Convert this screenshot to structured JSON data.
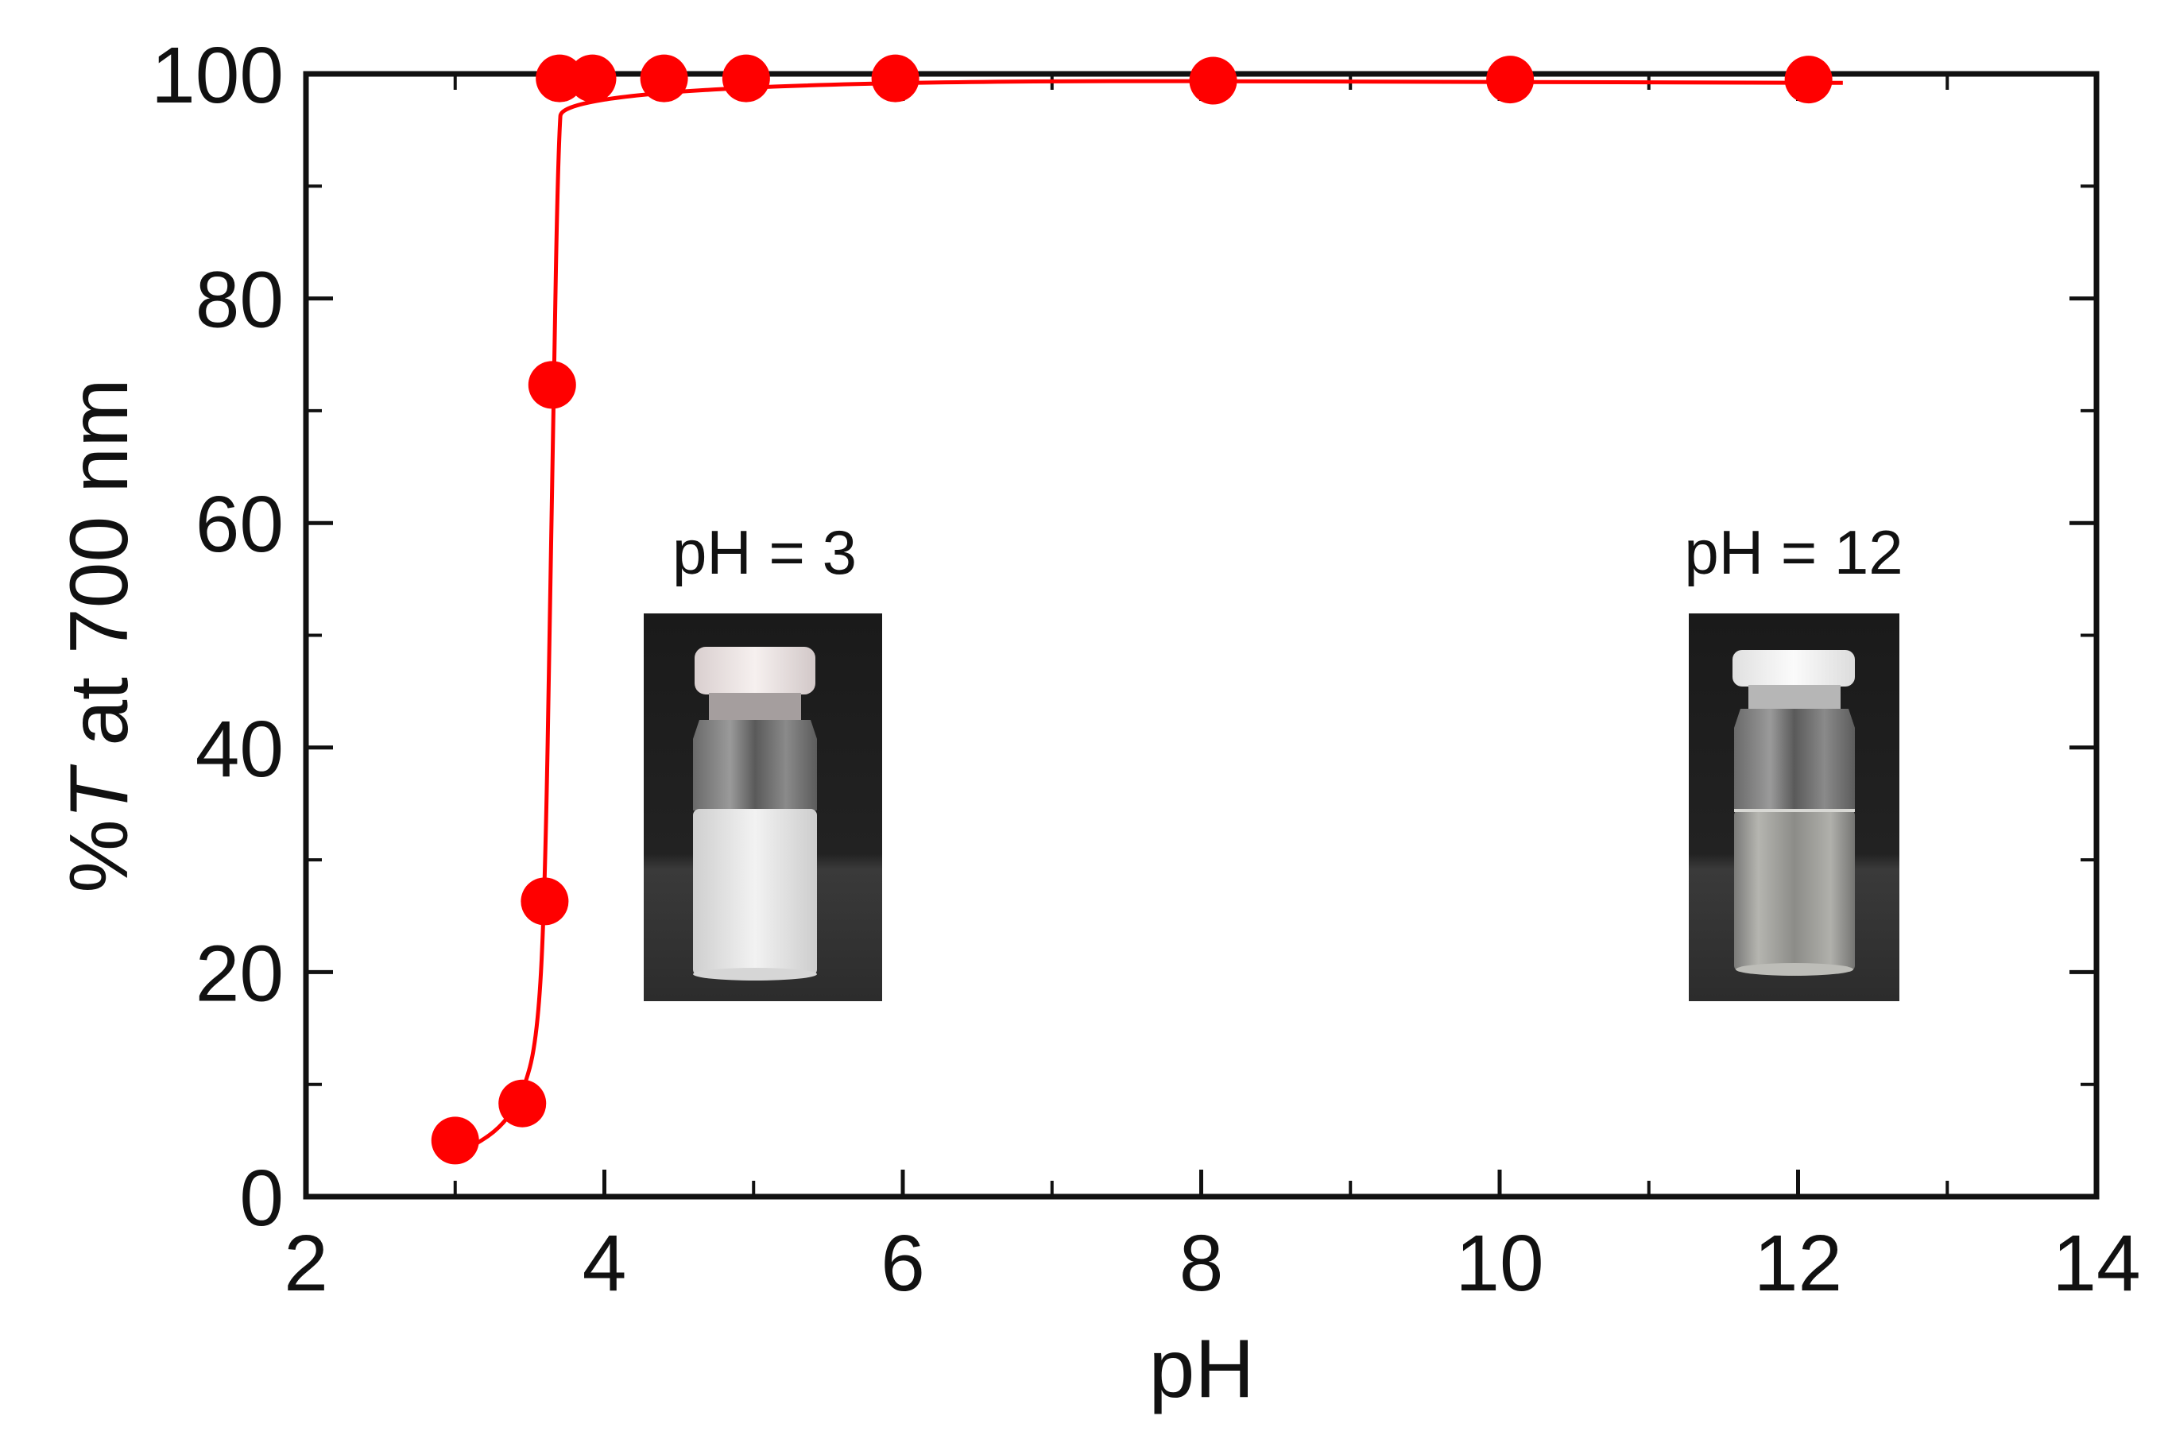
{
  "chart_data": {
    "type": "scatter",
    "title": "",
    "xlabel": "pH",
    "ylabel": {
      "prefix": "%",
      "italic": "T",
      "suffix": " at 700 nm"
    },
    "xlim": [
      2,
      14
    ],
    "ylim": [
      0,
      100
    ],
    "x_ticks_major": [
      2,
      4,
      6,
      8,
      10,
      12,
      14
    ],
    "x_tick_labels": [
      "2",
      "4",
      "6",
      "8",
      "10",
      "12",
      "14"
    ],
    "x_ticks_minor": [
      3,
      5,
      7,
      9,
      11,
      13
    ],
    "y_ticks_major": [
      0,
      20,
      40,
      60,
      80,
      100
    ],
    "y_tick_labels": [
      "0",
      "20",
      "40",
      "60",
      "80",
      "100"
    ],
    "y_ticks_minor": [
      10,
      30,
      50,
      70,
      90
    ],
    "grid": false,
    "series": [
      {
        "color": "#ff0000",
        "marker": "circle",
        "points": [
          {
            "x": 3.0,
            "y": 5.0
          },
          {
            "x": 3.45,
            "y": 8.3
          },
          {
            "x": 3.6,
            "y": 26.3
          },
          {
            "x": 3.65,
            "y": 72.3
          },
          {
            "x": 3.7,
            "y": 99.6
          },
          {
            "x": 3.92,
            "y": 99.6
          },
          {
            "x": 4.4,
            "y": 99.6
          },
          {
            "x": 4.95,
            "y": 99.6
          },
          {
            "x": 5.95,
            "y": 99.6
          },
          {
            "x": 8.08,
            "y": 99.4
          },
          {
            "x": 10.07,
            "y": 99.5
          },
          {
            "x": 12.07,
            "y": 99.5
          }
        ],
        "fit_curve": [
          {
            "x": 3.05,
            "y": 4.0
          },
          {
            "x": 3.3,
            "y": 6.0
          },
          {
            "x": 3.45,
            "y": 9.0
          },
          {
            "x": 3.55,
            "y": 14.0
          },
          {
            "x": 3.6,
            "y": 26.0
          },
          {
            "x": 3.64,
            "y": 55.0
          },
          {
            "x": 3.66,
            "y": 72.0
          },
          {
            "x": 3.69,
            "y": 93.0
          },
          {
            "x": 3.72,
            "y": 99.5
          },
          {
            "x": 12.3,
            "y": 99.2
          }
        ]
      }
    ],
    "annotations": [
      {
        "text": "pH = 3",
        "photo": "turbid-vial"
      },
      {
        "text": "pH = 12",
        "photo": "clear-vial"
      }
    ]
  }
}
